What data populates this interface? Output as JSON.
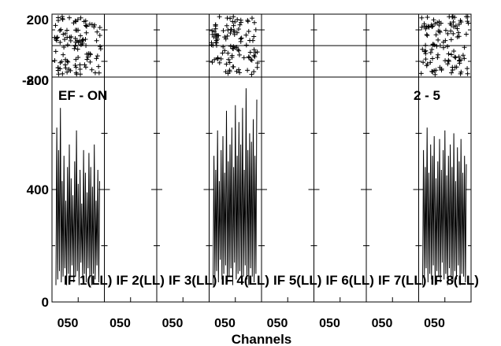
{
  "chart_data": {
    "type": "line",
    "title": "",
    "xlabel": "Channels",
    "ylabel": "",
    "annotations": {
      "top_left": "EF - ON",
      "top_right": "2 - 5"
    },
    "phase_panel": {
      "type": "scatter",
      "ylim": [
        -200,
        200
      ],
      "y_ticks": [
        "200",
        "-200"
      ],
      "marker": "+",
      "panels_with_data": [
        0,
        3,
        7
      ]
    },
    "amplitude_panel": {
      "type": "line",
      "ylim": [
        0,
        800
      ],
      "y_ticks": [
        "0",
        "400",
        "800"
      ],
      "panels_with_data": [
        0,
        3,
        7
      ]
    },
    "x_tick_label": "050",
    "subpanels": [
      {
        "label": "IF 1(LL)"
      },
      {
        "label": "IF 2(LL)"
      },
      {
        "label": "IF 3(LL)"
      },
      {
        "label": "IF 4(LL)"
      },
      {
        "label": "IF 5(LL)"
      },
      {
        "label": "IF 6(LL)"
      },
      {
        "label": "IF 7(LL)"
      },
      {
        "label": "IF 8(LL)"
      }
    ],
    "series": [
      {
        "panel": 0,
        "amplitude": [
          60,
          620,
          80,
          540,
          110,
          690,
          70,
          430,
          90,
          520,
          120,
          360,
          60,
          480,
          100,
          560,
          80,
          440,
          130,
          380,
          70,
          500,
          90,
          610,
          110,
          420,
          60,
          470,
          140,
          350,
          80,
          540,
          100,
          460,
          70,
          390,
          120,
          530,
          90,
          480,
          60,
          410,
          100,
          560,
          80,
          360,
          130,
          470,
          70,
          430
        ]
      },
      {
        "panel": 3,
        "amplitude": [
          60,
          520,
          90,
          470,
          110,
          610,
          70,
          430,
          150,
          540,
          80,
          590,
          100,
          460,
          130,
          680,
          70,
          500,
          90,
          560,
          120,
          620,
          60,
          480,
          140,
          700,
          80,
          520,
          100,
          640,
          110,
          560,
          70,
          690,
          90,
          470,
          130,
          760,
          80,
          540,
          60,
          600,
          120,
          570,
          90,
          650,
          70,
          520,
          100,
          720
        ]
      },
      {
        "panel": 7,
        "amplitude": [
          60,
          540,
          90,
          480,
          120,
          620,
          70,
          460,
          100,
          560,
          80,
          520,
          130,
          590,
          60,
          440,
          110,
          500,
          90,
          580,
          70,
          470,
          140,
          540,
          80,
          610,
          100,
          450,
          60,
          520,
          120,
          560,
          90,
          480,
          70,
          600,
          110,
          430,
          80,
          550,
          130,
          500,
          60,
          580,
          100,
          460,
          90,
          520,
          70,
          490
        ]
      }
    ]
  }
}
